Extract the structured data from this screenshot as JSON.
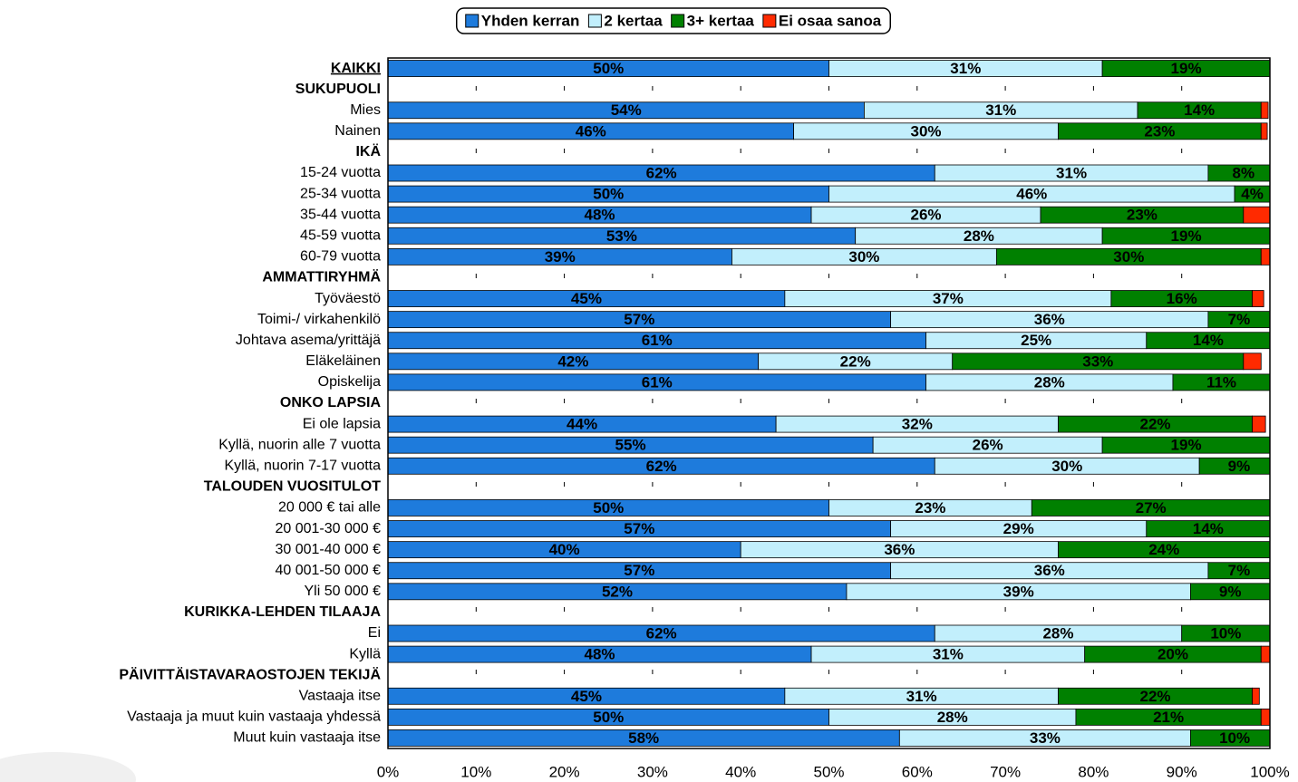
{
  "chart_data": {
    "type": "stacked_bar_100",
    "categories": [
      "KAIKKI",
      "SUKUPUOLI",
      "Mies",
      "Nainen",
      "IKÄ",
      "15-24 vuotta",
      "25-34 vuotta",
      "35-44 vuotta",
      "45-59 vuotta",
      "60-79 vuotta",
      "AMMATTIRYHMÄ",
      "Työväestö",
      "Toimi-/ virkahenkilö",
      "Johtava asema/yrittäjä",
      "Eläkeläinen",
      "Opiskelija",
      "ONKO LAPSIA",
      "Ei ole lapsia",
      "Kyllä, nuorin alle 7 vuotta",
      "Kyllä, nuorin 7-17 vuotta",
      "TALOUDEN VUOSITULOT",
      "20 000 € tai alle",
      "20 001-30 000 €",
      "30 001-40 000 €",
      "40 001-50 000 €",
      "Yli 50 000 €",
      "KURIKKA-LEHDEN TILAAJA",
      "Ei",
      "Kyllä",
      "PÄIVITTÄISTAVARAOSTOJEN TEKIJÄ",
      "Vastaaja itse",
      "Vastaaja ja muut kuin vastaaja yhdessä",
      "Muut kuin vastaaja itse"
    ],
    "series": [
      {
        "name": "Yhden kerran",
        "color": "#1e7bdc",
        "values": [
          50,
          null,
          54,
          46,
          null,
          62,
          50,
          48,
          53,
          39,
          null,
          45,
          57,
          61,
          42,
          61,
          null,
          44,
          55,
          62,
          null,
          50,
          57,
          40,
          57,
          52,
          null,
          62,
          48,
          null,
          45,
          50,
          58
        ],
        "value_labels": [
          "50%",
          null,
          "54%",
          "46%",
          null,
          "62%",
          "50%",
          "48%",
          "53%",
          "39%",
          null,
          "45%",
          "57%",
          "61%",
          "42%",
          "61%",
          null,
          "44%",
          "55%",
          "62%",
          null,
          "50%",
          "57%",
          "40%",
          "57%",
          "52%",
          null,
          "62%",
          "48%",
          null,
          "45%",
          "50%",
          "58%"
        ]
      },
      {
        "name": "2 kertaa",
        "color": "#c2effc",
        "values": [
          31,
          null,
          31,
          30,
          null,
          31,
          46,
          26,
          28,
          30,
          null,
          37,
          36,
          25,
          22,
          28,
          null,
          32,
          26,
          30,
          null,
          23,
          29,
          36,
          36,
          39,
          null,
          28,
          31,
          null,
          31,
          28,
          33
        ],
        "value_labels": [
          "31%",
          null,
          "31%",
          "30%",
          null,
          "31%",
          "46%",
          "26%",
          "28%",
          "30%",
          null,
          "37%",
          "36%",
          "25%",
          "22%",
          "28%",
          null,
          "32%",
          "26%",
          "30%",
          null,
          "23%",
          "29%",
          "36%",
          "36%",
          "39%",
          null,
          "28%",
          "31%",
          null,
          "31%",
          "28%",
          "33%"
        ]
      },
      {
        "name": "3+ kertaa",
        "color": "#008000",
        "values": [
          19,
          null,
          14,
          23,
          null,
          8,
          4,
          23,
          19,
          30,
          null,
          16,
          7,
          14,
          33,
          11,
          null,
          22,
          19,
          9,
          null,
          27,
          14,
          24,
          7,
          9,
          null,
          10,
          20,
          null,
          22,
          21,
          10
        ],
        "value_labels": [
          "19%",
          null,
          "14%",
          "23%",
          null,
          "8%",
          "4%",
          "23%",
          "19%",
          "30%",
          null,
          "16%",
          "7%",
          "14%",
          "33%",
          "11%",
          null,
          "22%",
          "19%",
          "9%",
          null,
          "27%",
          "14%",
          "24%",
          "7%",
          "9%",
          null,
          "10%",
          "20%",
          null,
          "22%",
          "21%",
          "10%"
        ]
      },
      {
        "name": "Ei osaa sanoa",
        "color": "#ff2a00",
        "values": [
          0.8,
          null,
          0.8,
          0.7,
          null,
          0,
          0,
          3,
          0,
          2,
          null,
          1.3,
          0,
          0,
          2,
          0,
          null,
          1.5,
          0,
          0,
          null,
          0,
          0,
          0,
          0,
          0,
          null,
          0,
          1,
          null,
          0.8,
          1.6,
          0
        ],
        "value_labels": [
          null,
          null,
          null,
          null,
          null,
          null,
          null,
          null,
          null,
          null,
          null,
          null,
          null,
          null,
          null,
          null,
          null,
          null,
          null,
          null,
          null,
          null,
          null,
          null,
          null,
          null,
          null,
          null,
          null,
          null,
          null,
          null,
          null
        ]
      }
    ],
    "xlim": [
      0,
      100
    ],
    "xticks": [
      {
        "value": 0,
        "label": "0%"
      },
      {
        "value": 10,
        "label": "10%"
      },
      {
        "value": 20,
        "label": "20%"
      },
      {
        "value": 30,
        "label": "30%"
      },
      {
        "value": 40,
        "label": "40%"
      },
      {
        "value": 50,
        "label": "50%"
      },
      {
        "value": 60,
        "label": "60%"
      },
      {
        "value": 70,
        "label": "70%"
      },
      {
        "value": 80,
        "label": "80%"
      },
      {
        "value": 90,
        "label": "90%"
      },
      {
        "value": 100,
        "label": "100%"
      }
    ],
    "grid": true,
    "legend": "top"
  }
}
